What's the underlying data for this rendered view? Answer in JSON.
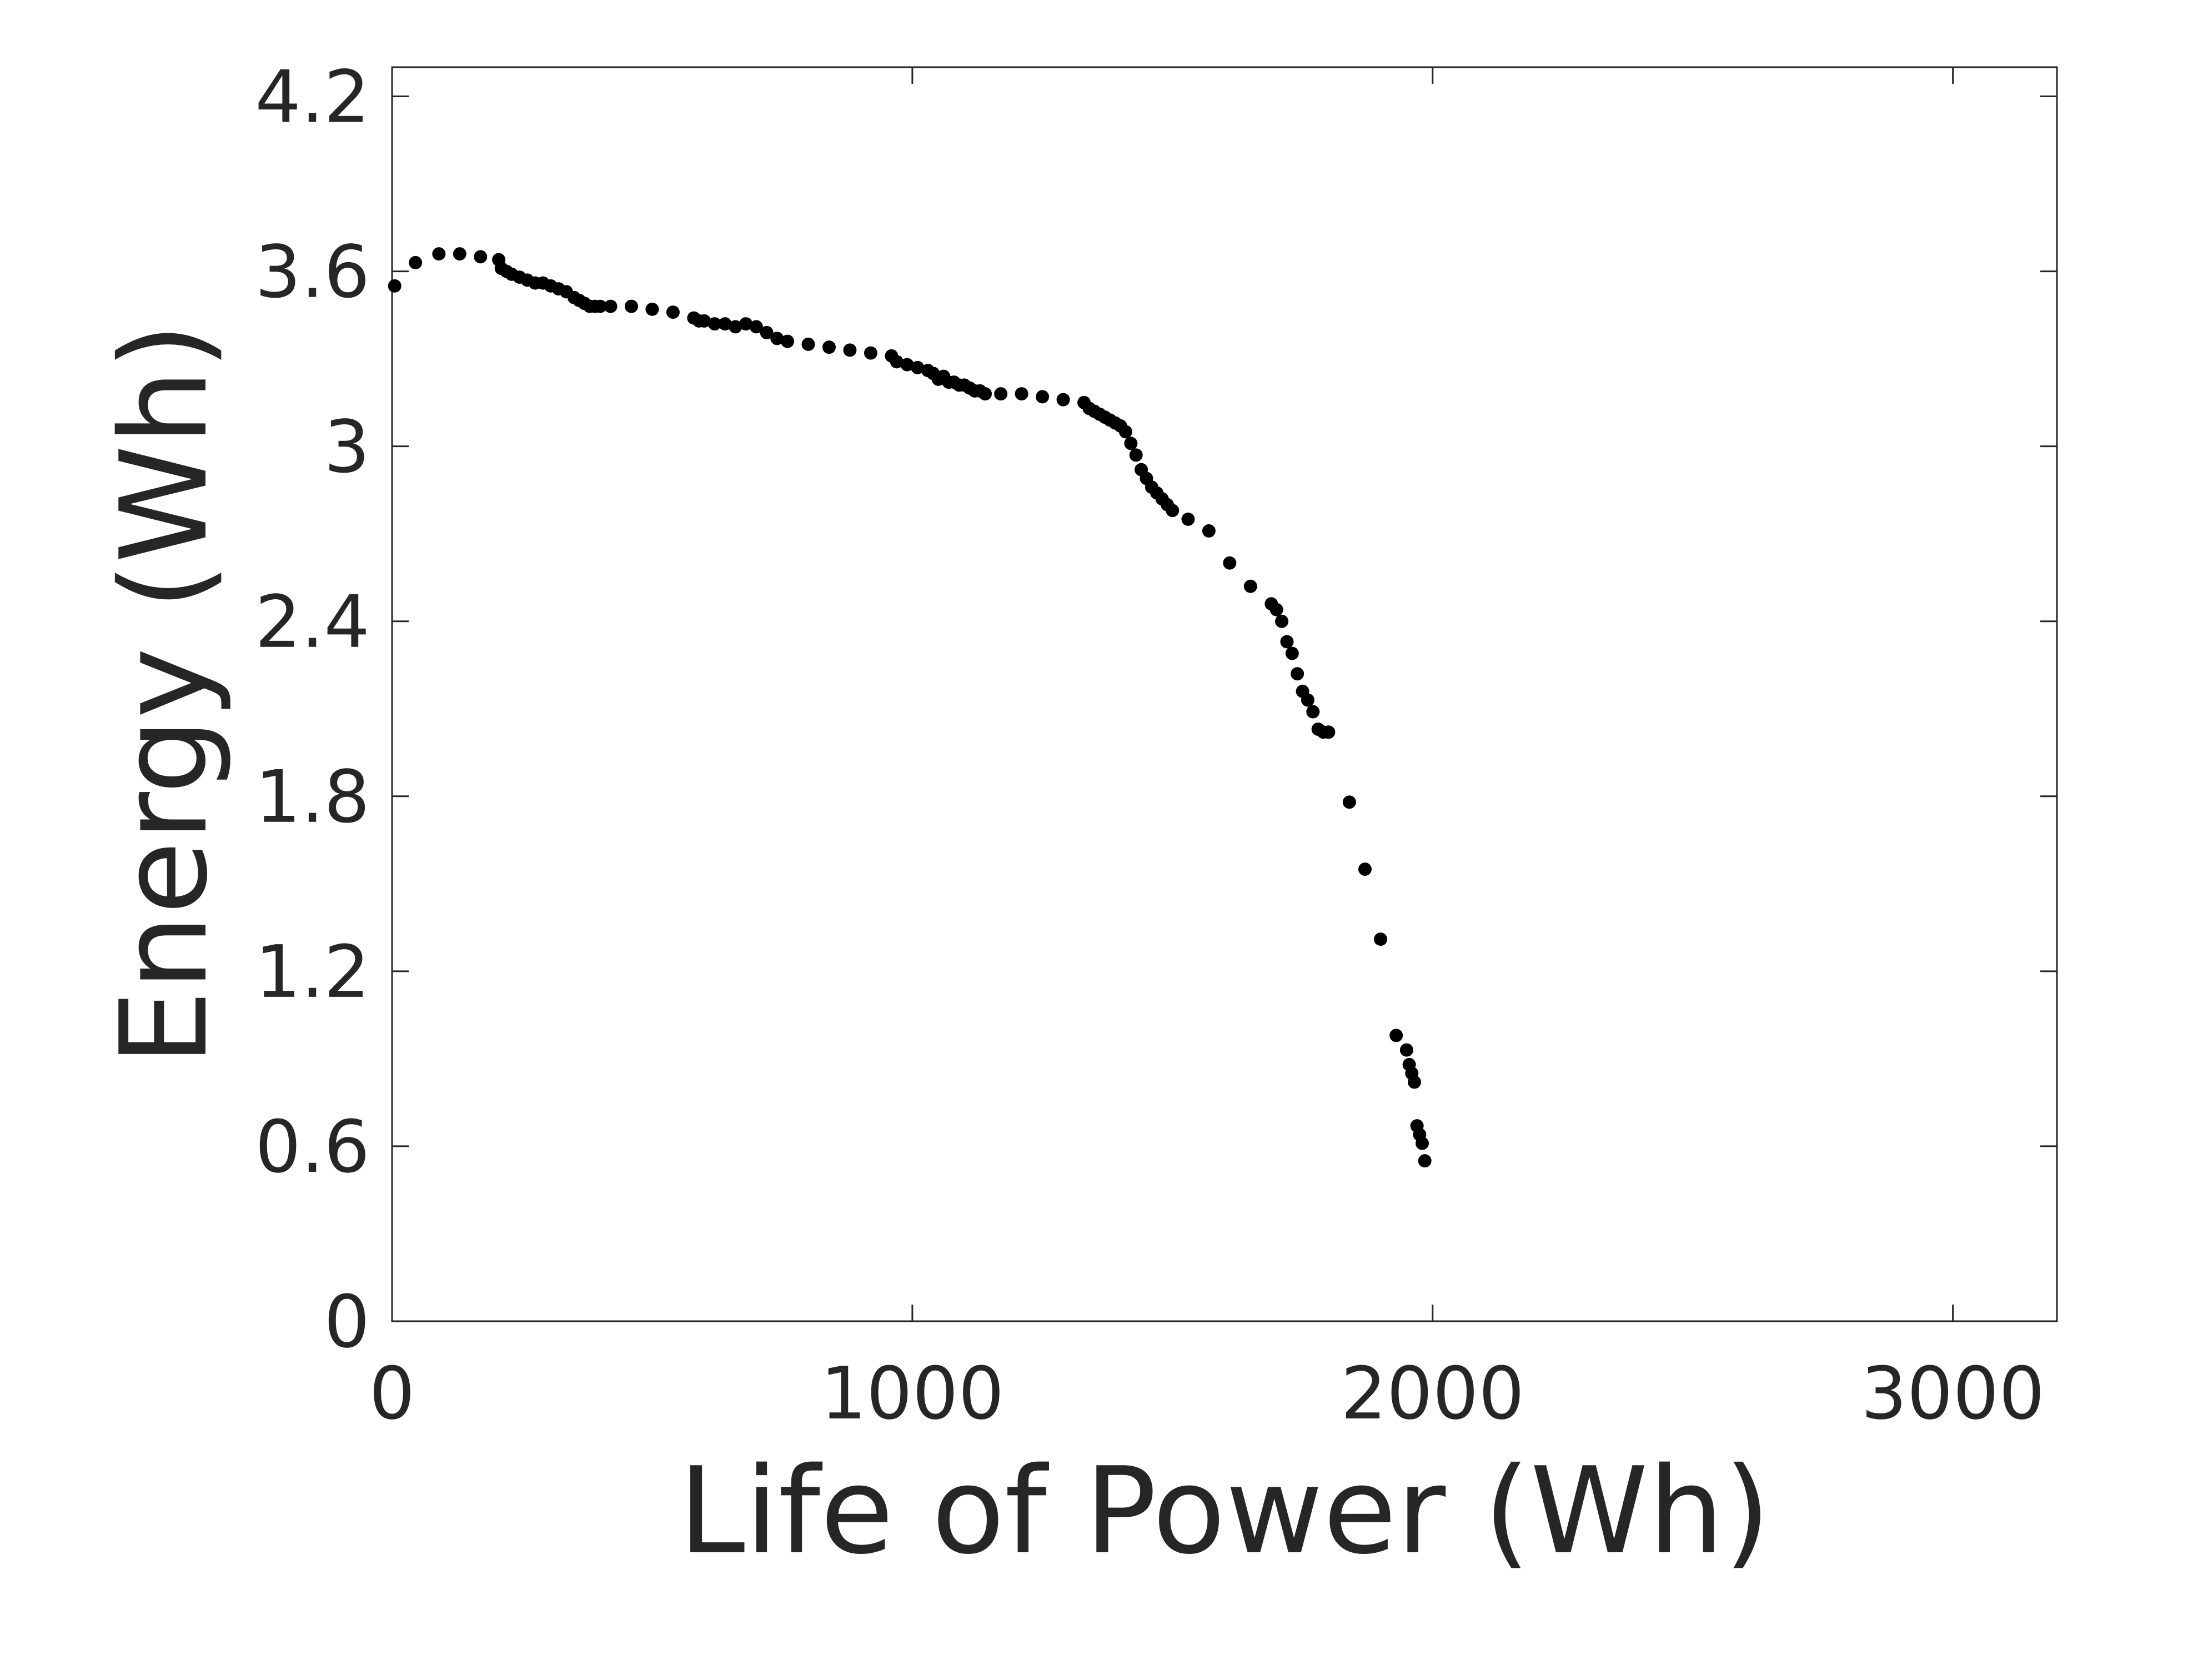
{
  "chart_data": {
    "type": "scatter",
    "title": "",
    "xlabel": "Life of Power (Wh)",
    "ylabel": "Energy (Wh)",
    "xlim": [
      0,
      3200
    ],
    "ylim": [
      0,
      4.3
    ],
    "xticks": [
      0,
      1000,
      2000,
      3000
    ],
    "yticks": [
      0,
      0.6,
      1.2,
      1.8,
      2.4,
      3,
      3.6,
      4.2
    ],
    "xtick_labels": [
      "0",
      "1000",
      "2000",
      "3000"
    ],
    "ytick_labels": [
      "0",
      "0.6",
      "1.2",
      "1.8",
      "2.4",
      "3",
      "3.6",
      "4.2"
    ],
    "grid": false,
    "marker_color": "#000000",
    "series": [
      {
        "name": "Energy",
        "x": [
          5,
          45,
          90,
          130,
          170,
          205,
          210,
          220,
          230,
          245,
          260,
          275,
          290,
          305,
          320,
          335,
          350,
          360,
          370,
          380,
          390,
          400,
          420,
          460,
          500,
          540,
          580,
          590,
          600,
          620,
          640,
          660,
          680,
          700,
          720,
          740,
          760,
          800,
          840,
          880,
          920,
          960,
          970,
          990,
          1010,
          1030,
          1040,
          1050,
          1060,
          1070,
          1080,
          1090,
          1100,
          1110,
          1120,
          1130,
          1140,
          1170,
          1210,
          1250,
          1290,
          1330,
          1340,
          1350,
          1360,
          1370,
          1380,
          1390,
          1400,
          1410,
          1420,
          1430,
          1440,
          1450,
          1460,
          1470,
          1480,
          1490,
          1500,
          1530,
          1570,
          1610,
          1650,
          1690,
          1700,
          1710,
          1720,
          1730,
          1740,
          1750,
          1760,
          1770,
          1780,
          1790,
          1800,
          1840,
          1870,
          1900,
          1930,
          1950,
          1955,
          1960,
          1965,
          1970,
          1975,
          1980,
          1985
        ],
        "y": [
          3.55,
          3.63,
          3.66,
          3.66,
          3.65,
          3.64,
          3.61,
          3.6,
          3.59,
          3.58,
          3.57,
          3.56,
          3.56,
          3.55,
          3.54,
          3.53,
          3.51,
          3.5,
          3.49,
          3.48,
          3.48,
          3.48,
          3.48,
          3.48,
          3.47,
          3.46,
          3.44,
          3.43,
          3.43,
          3.42,
          3.42,
          3.41,
          3.42,
          3.41,
          3.39,
          3.37,
          3.36,
          3.35,
          3.34,
          3.33,
          3.32,
          3.31,
          3.29,
          3.28,
          3.27,
          3.26,
          3.25,
          3.23,
          3.24,
          3.22,
          3.22,
          3.21,
          3.21,
          3.2,
          3.19,
          3.19,
          3.18,
          3.18,
          3.18,
          3.17,
          3.16,
          3.15,
          3.13,
          3.12,
          3.11,
          3.1,
          3.09,
          3.08,
          3.07,
          3.05,
          3.01,
          2.97,
          2.92,
          2.89,
          2.86,
          2.84,
          2.82,
          2.8,
          2.78,
          2.75,
          2.71,
          2.6,
          2.52,
          2.46,
          2.44,
          2.4,
          2.33,
          2.29,
          2.22,
          2.16,
          2.13,
          2.09,
          2.03,
          2.02,
          2.02,
          1.78,
          1.55,
          1.31,
          0.98,
          0.93,
          0.88,
          0.85,
          0.82,
          0.67,
          0.64,
          0.61,
          0.55
        ]
      }
    ]
  }
}
